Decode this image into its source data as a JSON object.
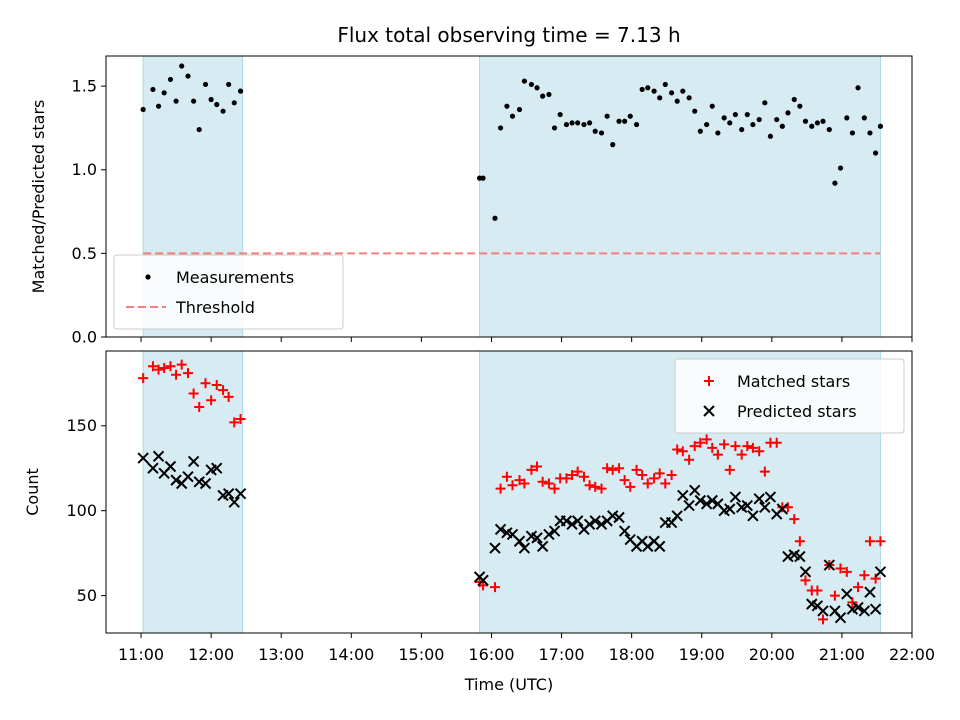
{
  "chart_data": {
    "type": "scatter",
    "title": "Flux total observing time = 7.13 h",
    "xlabel": "Time (UTC)",
    "x_units": "hours UTC",
    "xlim": [
      10.5,
      22.0
    ],
    "x_ticks": [
      {
        "value": 11,
        "label": "11:00"
      },
      {
        "value": 12,
        "label": "12:00"
      },
      {
        "value": 13,
        "label": "13:00"
      },
      {
        "value": 14,
        "label": "14:00"
      },
      {
        "value": 15,
        "label": "15:00"
      },
      {
        "value": 16,
        "label": "16:00"
      },
      {
        "value": 17,
        "label": "17:00"
      },
      {
        "value": 18,
        "label": "18:00"
      },
      {
        "value": 19,
        "label": "19:00"
      },
      {
        "value": 20,
        "label": "20:00"
      },
      {
        "value": 21,
        "label": "21:00"
      },
      {
        "value": 22,
        "label": "22:00"
      }
    ],
    "observing_windows": [
      [
        11.03,
        12.45
      ],
      [
        15.83,
        21.55
      ]
    ],
    "band_color": "#add8e6",
    "panels": [
      {
        "ylabel": "Matched/Predicted stars",
        "ylim": [
          0,
          1.68
        ],
        "y_ticks": [
          {
            "value": 0.0,
            "label": "0.0"
          },
          {
            "value": 0.5,
            "label": "0.5"
          },
          {
            "value": 1.0,
            "label": "1.0"
          },
          {
            "value": 1.5,
            "label": "1.5"
          }
        ],
        "legend": {
          "position": "lower-left",
          "entries": [
            {
              "label": "Measurements",
              "marker": "dot",
              "color": "#000000"
            },
            {
              "label": "Threshold",
              "marker": "dashed-line",
              "color": "#f08080"
            }
          ]
        },
        "threshold": {
          "name": "Threshold",
          "y": 0.5,
          "x_range": [
            11.03,
            21.55
          ],
          "color": "#f08080"
        },
        "series": [
          {
            "name": "Measurements",
            "marker": "dot",
            "color": "#000000",
            "x": [
              11.03,
              11.17,
              11.25,
              11.33,
              11.42,
              11.5,
              11.58,
              11.67,
              11.75,
              11.83,
              11.92,
              12.0,
              12.08,
              12.17,
              12.25,
              12.33,
              12.42,
              15.83,
              15.88,
              16.05,
              16.13,
              16.22,
              16.3,
              16.4,
              16.47,
              16.57,
              16.65,
              16.73,
              16.82,
              16.9,
              16.98,
              17.07,
              17.15,
              17.23,
              17.32,
              17.4,
              17.48,
              17.57,
              17.65,
              17.73,
              17.82,
              17.9,
              17.98,
              18.07,
              18.15,
              18.23,
              18.32,
              18.4,
              18.48,
              18.57,
              18.65,
              18.73,
              18.82,
              18.9,
              18.98,
              19.07,
              19.15,
              19.23,
              19.32,
              19.4,
              19.48,
              19.57,
              19.65,
              19.73,
              19.82,
              19.9,
              19.98,
              20.07,
              20.15,
              20.23,
              20.32,
              20.4,
              20.48,
              20.57,
              20.65,
              20.73,
              20.82,
              20.9,
              20.98,
              21.07,
              21.15,
              21.23,
              21.32,
              21.4,
              21.48,
              21.55
            ],
            "y": [
              1.36,
              1.48,
              1.38,
              1.46,
              1.54,
              1.41,
              1.62,
              1.56,
              1.41,
              1.24,
              1.51,
              1.42,
              1.39,
              1.35,
              1.51,
              1.4,
              1.47,
              0.95,
              0.95,
              0.71,
              1.25,
              1.38,
              1.32,
              1.36,
              1.53,
              1.51,
              1.49,
              1.44,
              1.45,
              1.25,
              1.33,
              1.27,
              1.28,
              1.28,
              1.27,
              1.28,
              1.23,
              1.22,
              1.32,
              1.15,
              1.29,
              1.29,
              1.32,
              1.27,
              1.48,
              1.49,
              1.47,
              1.43,
              1.51,
              1.46,
              1.41,
              1.47,
              1.43,
              1.35,
              1.23,
              1.27,
              1.38,
              1.22,
              1.31,
              1.28,
              1.33,
              1.24,
              1.33,
              1.27,
              1.3,
              1.4,
              1.2,
              1.3,
              1.26,
              1.34,
              1.42,
              1.38,
              1.29,
              1.26,
              1.28,
              1.29,
              1.24,
              0.92,
              1.01,
              1.31,
              1.22,
              1.49,
              1.31,
              1.22,
              1.1,
              1.26
            ]
          }
        ]
      },
      {
        "ylabel": "Count",
        "ylim": [
          28,
          194
        ],
        "y_ticks": [
          {
            "value": 50,
            "label": "50"
          },
          {
            "value": 100,
            "label": "100"
          },
          {
            "value": 150,
            "label": "150"
          }
        ],
        "legend": {
          "position": "upper-right",
          "entries": [
            {
              "label": "Matched stars",
              "marker": "plus",
              "color": "#ff0000"
            },
            {
              "label": "Predicted stars",
              "marker": "x",
              "color": "#000000"
            }
          ]
        },
        "series": [
          {
            "name": "Matched stars",
            "marker": "plus",
            "color": "#ff0000",
            "x": [
              11.03,
              11.17,
              11.25,
              11.33,
              11.42,
              11.5,
              11.58,
              11.67,
              11.75,
              11.83,
              11.92,
              12.0,
              12.08,
              12.17,
              12.25,
              12.33,
              12.42,
              15.83,
              15.88,
              16.05,
              16.13,
              16.22,
              16.3,
              16.4,
              16.47,
              16.57,
              16.65,
              16.73,
              16.82,
              16.9,
              16.98,
              17.07,
              17.15,
              17.23,
              17.32,
              17.4,
              17.48,
              17.57,
              17.65,
              17.73,
              17.82,
              17.9,
              17.98,
              18.07,
              18.15,
              18.23,
              18.32,
              18.4,
              18.48,
              18.57,
              18.65,
              18.73,
              18.82,
              18.9,
              18.98,
              19.07,
              19.15,
              19.23,
              19.32,
              19.4,
              19.48,
              19.57,
              19.65,
              19.73,
              19.82,
              19.9,
              19.98,
              20.07,
              20.15,
              20.23,
              20.32,
              20.4,
              20.48,
              20.57,
              20.65,
              20.73,
              20.82,
              20.9,
              20.98,
              21.07,
              21.15,
              21.23,
              21.32,
              21.4,
              21.48,
              21.55
            ],
            "y": [
              178,
              185,
              183,
              184,
              185,
              180,
              186,
              181,
              169,
              161,
              175,
              165,
              174,
              171,
              167,
              152,
              154,
              58,
              56,
              55,
              113,
              120,
              115,
              118,
              116,
              124,
              126,
              117,
              116,
              113,
              119,
              119,
              121,
              123,
              120,
              115,
              114,
              113,
              125,
              124,
              125,
              118,
              114,
              124,
              121,
              116,
              119,
              122,
              116,
              121,
              136,
              135,
              130,
              138,
              140,
              142,
              137,
              133,
              139,
              124,
              138,
              133,
              138,
              137,
              135,
              123,
              140,
              140,
              102,
              102,
              95,
              82,
              59,
              53,
              53,
              36,
              68,
              50,
              66,
              64,
              46,
              55,
              62,
              82,
              60,
              82
            ]
          },
          {
            "name": "Predicted stars",
            "marker": "x",
            "color": "#000000",
            "x": [
              11.03,
              11.17,
              11.25,
              11.33,
              11.42,
              11.5,
              11.58,
              11.67,
              11.75,
              11.83,
              11.92,
              12.0,
              12.08,
              12.17,
              12.25,
              12.33,
              12.42,
              15.83,
              15.88,
              16.05,
              16.13,
              16.22,
              16.3,
              16.4,
              16.47,
              16.57,
              16.65,
              16.73,
              16.82,
              16.9,
              16.98,
              17.07,
              17.15,
              17.23,
              17.32,
              17.4,
              17.48,
              17.57,
              17.65,
              17.73,
              17.82,
              17.9,
              17.98,
              18.07,
              18.15,
              18.23,
              18.32,
              18.4,
              18.48,
              18.57,
              18.65,
              18.73,
              18.82,
              18.9,
              18.98,
              19.07,
              19.15,
              19.23,
              19.32,
              19.4,
              19.48,
              19.57,
              19.65,
              19.73,
              19.82,
              19.9,
              19.98,
              20.07,
              20.15,
              20.23,
              20.32,
              20.4,
              20.48,
              20.57,
              20.65,
              20.73,
              20.82,
              20.9,
              20.98,
              21.07,
              21.15,
              21.23,
              21.32,
              21.4,
              21.48,
              21.55
            ],
            "y": [
              131,
              125,
              132,
              122,
              126,
              118,
              116,
              120,
              129,
              117,
              116,
              124,
              125,
              109,
              110,
              105,
              110,
              61,
              59,
              78,
              89,
              87,
              86,
              82,
              78,
              85,
              84,
              79,
              86,
              88,
              94,
              94,
              92,
              94,
              89,
              92,
              94,
              92,
              94,
              97,
              96,
              88,
              83,
              79,
              82,
              79,
              82,
              79,
              93,
              93,
              97,
              109,
              103,
              112,
              106,
              104,
              106,
              104,
              100,
              101,
              108,
              102,
              103,
              97,
              107,
              102,
              108,
              98,
              101,
              73,
              74,
              73,
              64,
              45,
              44,
              41,
              68,
              41,
              37,
              51,
              42,
              43,
              41,
              52,
              42,
              64
            ]
          }
        ]
      }
    ]
  }
}
